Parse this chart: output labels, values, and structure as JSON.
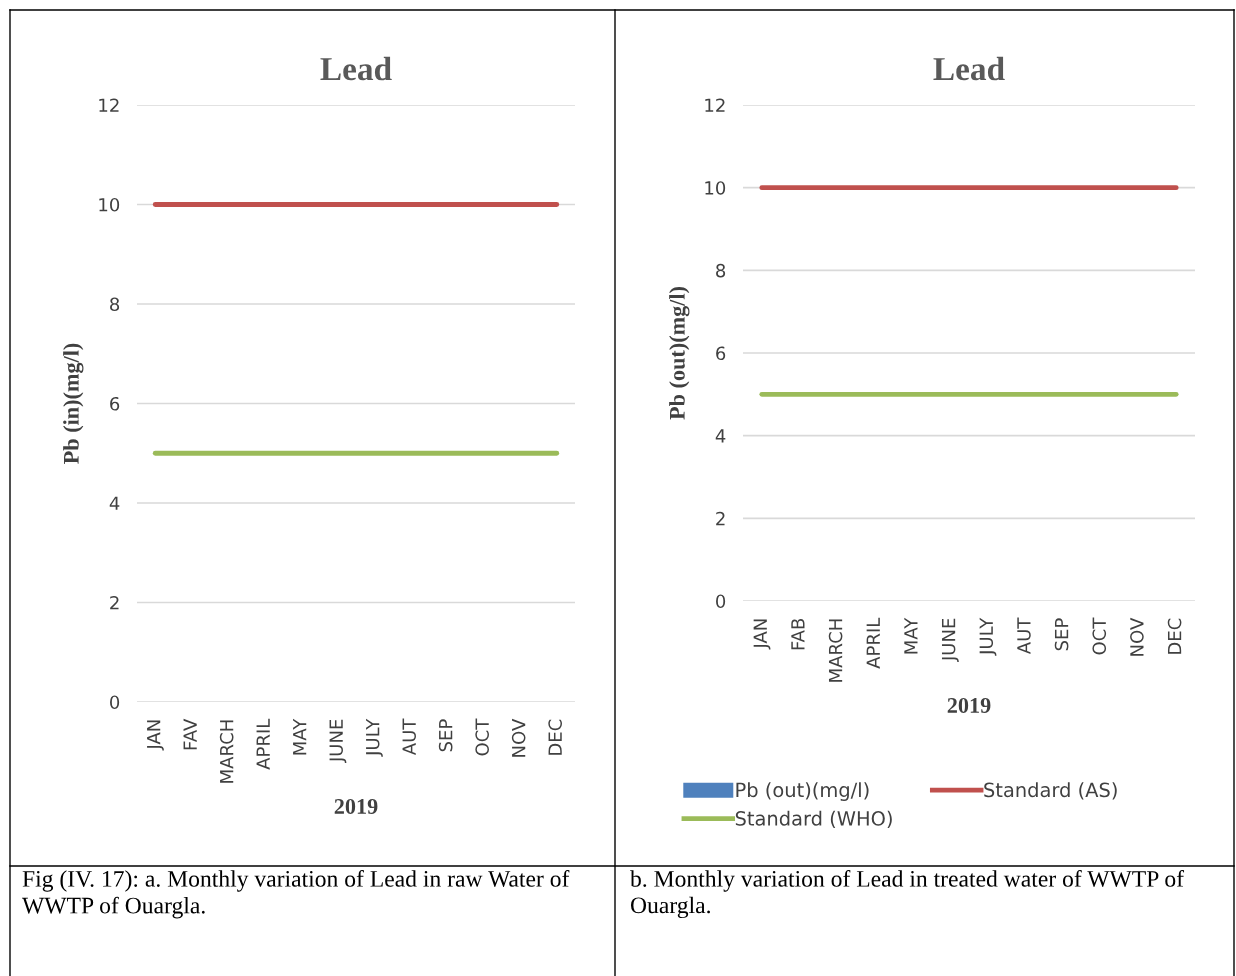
{
  "chart_data": [
    {
      "type": "bar",
      "title": "Lead",
      "ylabel": "Pb (in)(mg/l)",
      "xlabel": "2019",
      "categories": [
        "JAN",
        "FAV",
        "MARCH",
        "APRIL",
        "MAY",
        "JUNE",
        "JULY",
        "AUT",
        "SEP",
        "OCT",
        "NOV",
        "DEC"
      ],
      "series": [
        {
          "color": "#4f81bd",
          "values": [
            0,
            0,
            0,
            0,
            0,
            0,
            0,
            0,
            0,
            0,
            0,
            0
          ]
        },
        {
          "type": "line",
          "color": "#c0504d",
          "values": [
            10,
            10,
            10,
            10,
            10,
            10,
            10,
            10,
            10,
            10,
            10,
            10
          ]
        },
        {
          "type": "line",
          "color": "#9bbb59",
          "values": [
            5,
            5,
            5,
            5,
            5,
            5,
            5,
            5,
            5,
            5,
            5,
            5
          ]
        }
      ],
      "ylim": [
        0,
        12
      ],
      "yticks": [
        0,
        2,
        4,
        6,
        8,
        10,
        12
      ],
      "grid": "y",
      "annotations": [
        "Fig (IV. 17): a. Monthly variation of Lead in raw Water of WWTP of Ouargla."
      ]
    },
    {
      "type": "bar",
      "title": "Lead",
      "ylabel": "Pb (out)(mg/l)",
      "xlabel": "2019",
      "categories": [
        "JAN",
        "FAB",
        "MARCH",
        "APRIL",
        "MAY",
        "JUNE",
        "JULY",
        "AUT",
        "SEP",
        "OCT",
        "NOV",
        "DEC"
      ],
      "series": [
        {
          "name": "Pb (out)(mg/l)",
          "color": "#4f81bd",
          "values": [
            0,
            0,
            0,
            0,
            0,
            0,
            0,
            0,
            0,
            0,
            0,
            0
          ]
        },
        {
          "name": "Standard (AS)",
          "type": "line",
          "color": "#c0504d",
          "values": [
            10,
            10,
            10,
            10,
            10,
            10,
            10,
            10,
            10,
            10,
            10,
            10
          ]
        },
        {
          "name": "Standard (WHO)",
          "type": "line",
          "color": "#9bbb59",
          "values": [
            5,
            5,
            5,
            5,
            5,
            5,
            5,
            5,
            5,
            5,
            5,
            5
          ]
        }
      ],
      "ylim": [
        0,
        12
      ],
      "yticks": [
        0,
        2,
        4,
        6,
        8,
        10,
        12
      ],
      "grid": "y",
      "legend": "bottom",
      "annotations": [
        "b. Monthly variation of Lead in treated water of WWTP of Ouargla."
      ]
    }
  ]
}
